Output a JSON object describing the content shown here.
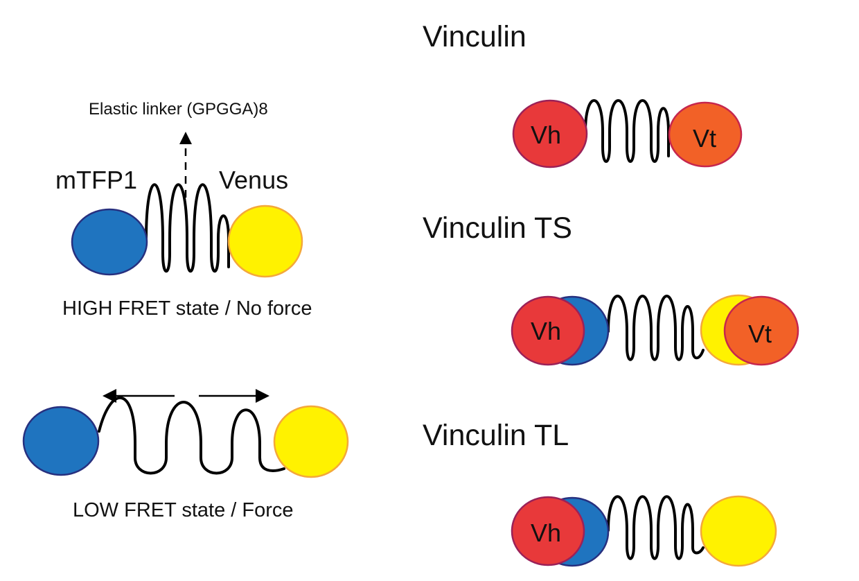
{
  "colors": {
    "mtfp1": "#1f74bf",
    "mtfp1_stroke": "#27307f",
    "venus": "#fff200",
    "venus_stroke": "#f4a83a",
    "vh": "#e8393a",
    "vh_stroke": "#9b2158",
    "vt": "#f26127",
    "vt_stroke": "#c6264d",
    "line": "#000000"
  },
  "sensor": {
    "linker_label": "Elastic linker (GPGGA)8",
    "donor_label": "mTFP1",
    "acceptor_label": "Venus",
    "high_state_label": "HIGH FRET state / No force",
    "low_state_label": "LOW FRET state / Force"
  },
  "constructs": [
    {
      "title": "Vinculin",
      "vh": "Vh",
      "vt": "Vt"
    },
    {
      "title": "Vinculin TS",
      "vh": "Vh",
      "vt": "Vt"
    },
    {
      "title": "Vinculin TL",
      "vh": "Vh"
    }
  ],
  "icons": {
    "linker_pointer": "dashed-arrow-up-icon",
    "force_left": "arrow-left-icon",
    "force_right": "arrow-right-icon"
  }
}
